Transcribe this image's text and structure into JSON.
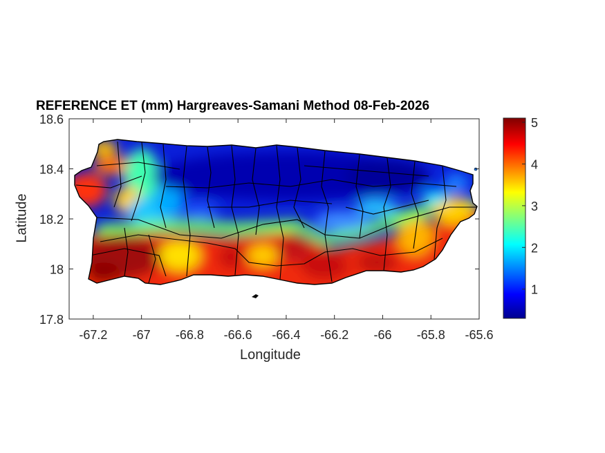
{
  "chart_data": {
    "type": "heatmap",
    "title": "REFERENCE ET (mm) Hargreaves-Samani Method  08-Feb-2026",
    "xlabel": "Longitude",
    "ylabel": "Latitude",
    "xlim": [
      -67.3,
      -65.6
    ],
    "ylim": [
      17.8,
      18.6
    ],
    "xticks": [
      -67.2,
      -67,
      -66.8,
      -66.6,
      -66.4,
      -66.2,
      -66,
      -65.8,
      -65.6
    ],
    "xtick_labels": [
      "-67.2",
      "-67",
      "-66.8",
      "-66.6",
      "-66.4",
      "-66.2",
      "-66",
      "-65.8",
      "-65.6"
    ],
    "yticks": [
      17.8,
      18,
      18.2,
      18.4,
      18.6
    ],
    "ytick_labels": [
      "17.8",
      "18",
      "18.2",
      "18.4",
      "18.6"
    ],
    "colorbar": {
      "min": 0.3,
      "max": 5.1,
      "ticks": [
        1,
        2,
        3,
        4,
        5
      ],
      "tick_labels": [
        "1",
        "2",
        "3",
        "4",
        "5"
      ],
      "colormap": "jet"
    },
    "grid": false,
    "colors": {
      "low": "#00008f",
      "mid": "#7fff7f",
      "high": "#800000",
      "axis": "#262626",
      "borders": "#000000"
    }
  }
}
